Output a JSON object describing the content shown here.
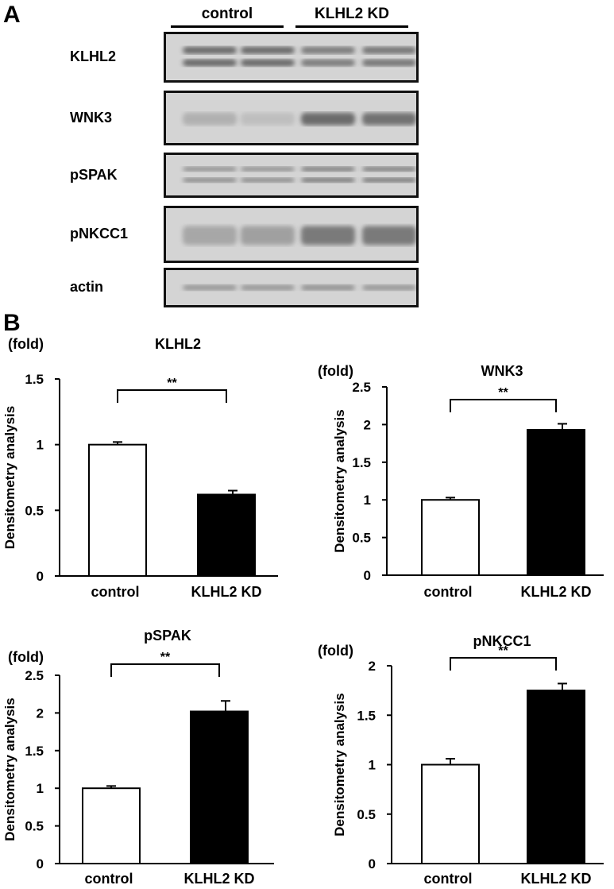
{
  "panels": {
    "a": "A",
    "b": "B"
  },
  "western_blot": {
    "groups": [
      "control",
      "KLHL2 KD"
    ],
    "rows": [
      {
        "label": "KLHL2",
        "color": "#8c8c8c"
      },
      {
        "label": "WNK3",
        "color": "#7a7a7a"
      },
      {
        "label": "pSPAK",
        "color": "#8f8f8f"
      },
      {
        "label": "pNKCC1",
        "color": "#8a8a8a"
      },
      {
        "label": "actin",
        "color": "#9a9a9a"
      }
    ]
  },
  "chart_data": [
    {
      "type": "bar",
      "title": "KLHL2",
      "unit": "(fold)",
      "ylabel": "Densitometry analysis",
      "categories": [
        "control",
        "KLHL2 KD"
      ],
      "values": [
        1.0,
        0.62
      ],
      "errors": [
        0.02,
        0.03
      ],
      "colors": [
        "#ffffff",
        "#000000"
      ],
      "ylim": [
        0,
        1.5
      ],
      "yticks": [
        "0",
        "0.5",
        "1",
        "1.5"
      ],
      "significance": "**"
    },
    {
      "type": "bar",
      "title": "WNK3",
      "unit": "(fold)",
      "ylabel": "Densitometry analysis",
      "categories": [
        "control",
        "KLHL2 KD"
      ],
      "values": [
        1.0,
        1.93
      ],
      "errors": [
        0.03,
        0.08
      ],
      "colors": [
        "#ffffff",
        "#000000"
      ],
      "ylim": [
        0,
        2.5
      ],
      "yticks": [
        "0",
        "0.5",
        "1",
        "1.5",
        "2",
        "2.5"
      ],
      "significance": "**"
    },
    {
      "type": "bar",
      "title": "pSPAK",
      "unit": "(fold)",
      "ylabel": "Densitometry analysis",
      "categories": [
        "control",
        "KLHL2 KD"
      ],
      "values": [
        1.0,
        2.02
      ],
      "errors": [
        0.03,
        0.14
      ],
      "colors": [
        "#ffffff",
        "#000000"
      ],
      "ylim": [
        0,
        2.5
      ],
      "yticks": [
        "0",
        "0.5",
        "1",
        "1.5",
        "2",
        "2.5"
      ],
      "significance": "**"
    },
    {
      "type": "bar",
      "title": "pNKCC1",
      "unit": "(fold)",
      "ylabel": "Densitometry analysis",
      "categories": [
        "control",
        "KLHL2 KD"
      ],
      "values": [
        1.0,
        1.75
      ],
      "errors": [
        0.06,
        0.07
      ],
      "colors": [
        "#ffffff",
        "#000000"
      ],
      "ylim": [
        0,
        2
      ],
      "yticks": [
        "0",
        "0.5",
        "1",
        "1.5",
        "2"
      ],
      "significance": "**"
    }
  ]
}
